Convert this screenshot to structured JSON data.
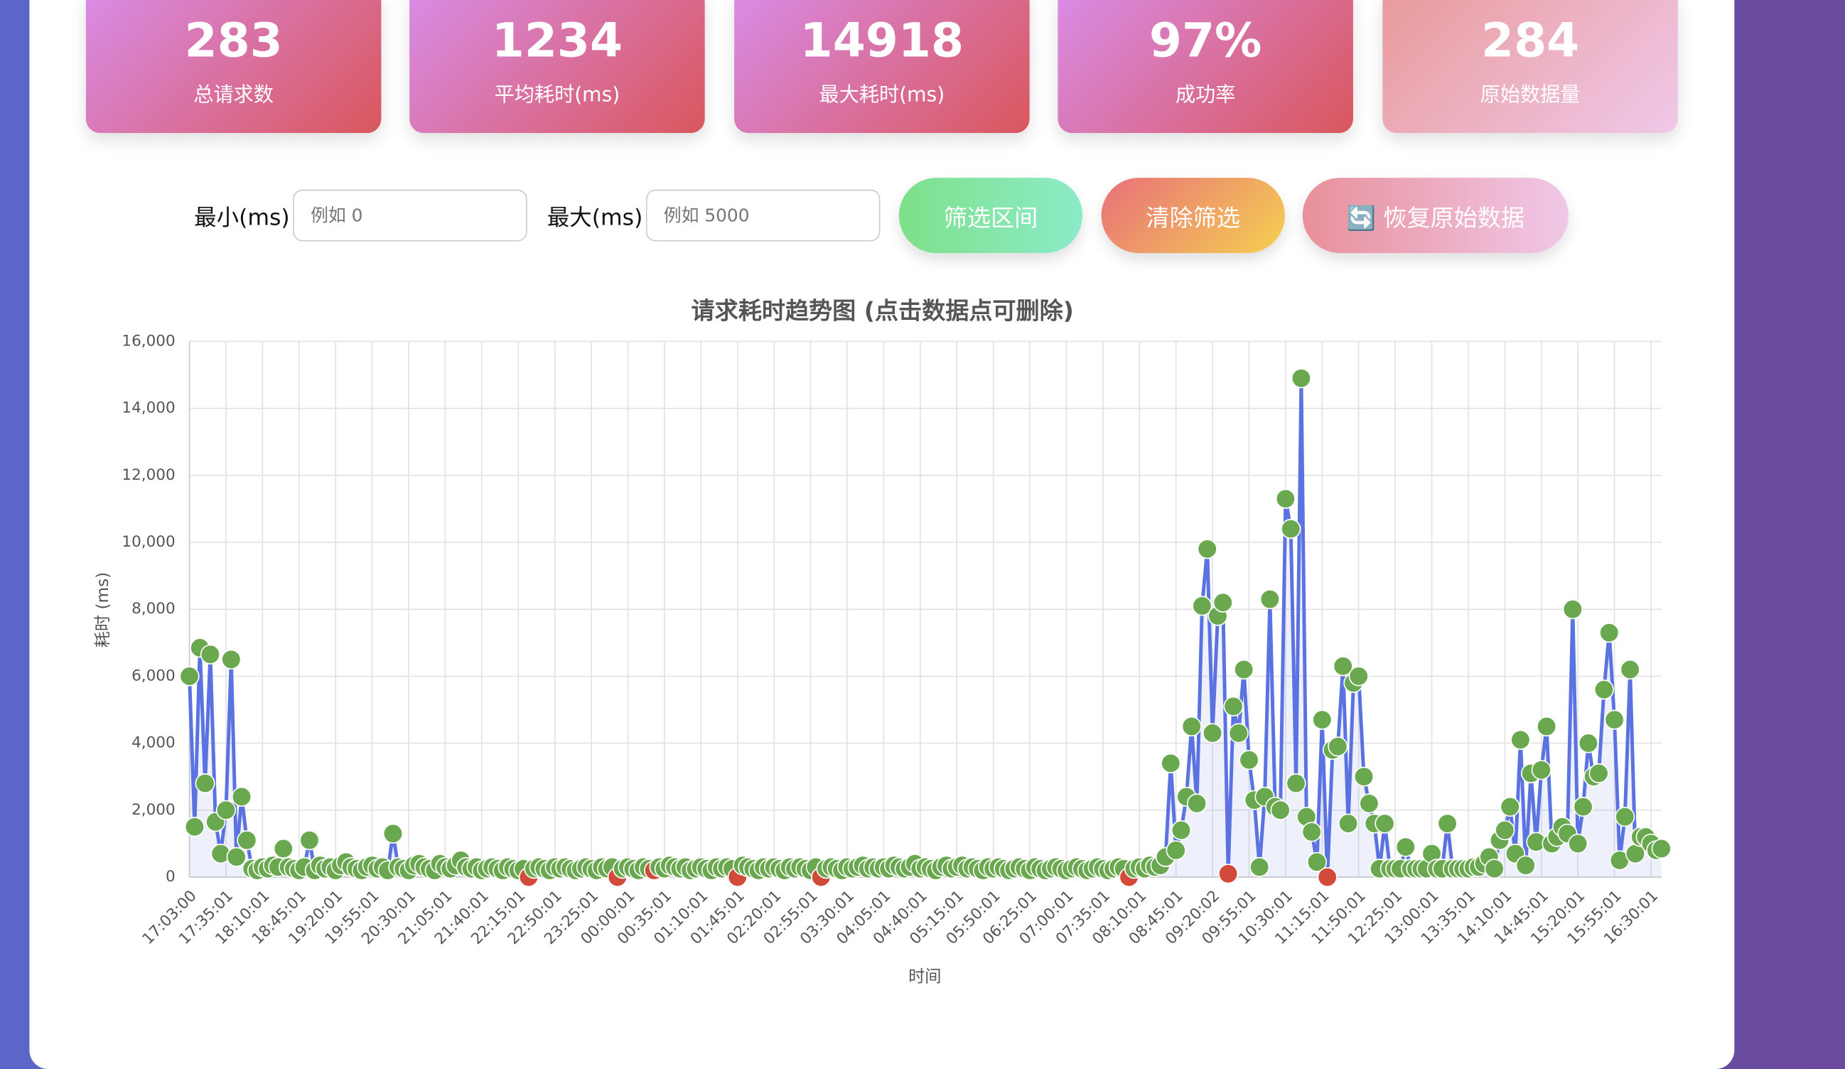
{
  "stats": [
    {
      "value": "283",
      "label": "总请求数"
    },
    {
      "value": "1234",
      "label": "平均耗时(ms)"
    },
    {
      "value": "14918",
      "label": "最大耗时(ms)"
    },
    {
      "value": "97%",
      "label": "成功率"
    },
    {
      "value": "284",
      "label": "原始数据量"
    }
  ],
  "filters": {
    "min_label": "最小(ms)",
    "min_placeholder": "例如 0",
    "max_label": "最大(ms)",
    "max_placeholder": "例如 5000"
  },
  "buttons": [
    "筛选区间",
    "清除筛选",
    "🔄 恢复原始数据"
  ],
  "chart_data": {
    "type": "line",
    "title": "请求耗时趋势图 (点击数据点可删除)",
    "x_label": "时间",
    "y_label": "耗时 (ms)",
    "categories": [
      "17:03:00",
      null,
      null,
      null,
      null,
      null,
      null,
      "17:35:01",
      null,
      null,
      null,
      null,
      null,
      null,
      "18:10:01",
      null,
      null,
      null,
      null,
      null,
      null,
      "18:45:01",
      null,
      null,
      null,
      null,
      null,
      null,
      "19:20:01",
      null,
      null,
      null,
      null,
      null,
      null,
      "19:55:01",
      null,
      null,
      null,
      null,
      null,
      null,
      "20:30:01",
      null,
      null,
      null,
      null,
      null,
      null,
      "21:05:01",
      null,
      null,
      null,
      null,
      null,
      null,
      "21:40:01",
      null,
      null,
      null,
      null,
      null,
      null,
      "22:15:01",
      null,
      null,
      null,
      null,
      null,
      null,
      "22:50:01",
      null,
      null,
      null,
      null,
      null,
      null,
      "23:25:01",
      null,
      null,
      null,
      null,
      null,
      null,
      "00:00:01",
      null,
      null,
      null,
      null,
      null,
      null,
      "00:35:01",
      null,
      null,
      null,
      null,
      null,
      null,
      "01:10:01",
      null,
      null,
      null,
      null,
      null,
      null,
      "01:45:01",
      null,
      null,
      null,
      null,
      null,
      null,
      "02:20:01",
      null,
      null,
      null,
      null,
      null,
      null,
      "02:55:01",
      null,
      null,
      null,
      null,
      null,
      null,
      "03:30:01",
      null,
      null,
      null,
      null,
      null,
      null,
      "04:05:01",
      null,
      null,
      null,
      null,
      null,
      null,
      "04:40:01",
      null,
      null,
      null,
      null,
      null,
      null,
      "05:15:01",
      null,
      null,
      null,
      null,
      null,
      null,
      "05:50:01",
      null,
      null,
      null,
      null,
      null,
      null,
      "06:25:01",
      null,
      null,
      null,
      null,
      null,
      null,
      "07:00:01",
      null,
      null,
      null,
      null,
      null,
      null,
      "07:35:01",
      null,
      null,
      null,
      null,
      null,
      null,
      "08:10:01",
      null,
      null,
      null,
      null,
      null,
      null,
      "08:45:01",
      null,
      null,
      null,
      null,
      null,
      null,
      "09:20:02",
      null,
      null,
      null,
      null,
      null,
      null,
      "09:55:01",
      null,
      null,
      null,
      null,
      null,
      null,
      "10:30:01",
      null,
      null,
      null,
      null,
      null,
      null,
      "11:15:01",
      null,
      null,
      null,
      null,
      null,
      null,
      "11:50:01",
      null,
      null,
      null,
      null,
      null,
      null,
      "12:25:01",
      null,
      null,
      null,
      null,
      null,
      null,
      "13:00:01",
      null,
      null,
      null,
      null,
      null,
      null,
      "13:35:01",
      null,
      null,
      null,
      null,
      null,
      null,
      "14:10:01",
      null,
      null,
      null,
      null,
      null,
      null,
      "14:45:01",
      null,
      null,
      null,
      null,
      null,
      null,
      "15:20:01",
      null,
      null,
      null,
      null,
      null,
      null,
      "15:55:01",
      null,
      null,
      null,
      null,
      null,
      null,
      "16:30:01",
      null,
      null
    ],
    "series": [
      {
        "color": "#5b73e0",
        "values": [
          6000,
          1500,
          6850,
          2800,
          6650,
          1650,
          700,
          2000,
          6500,
          600,
          2400,
          1100,
          250,
          200,
          300,
          250,
          350,
          300,
          850,
          300,
          250,
          200,
          300,
          1100,
          200,
          350,
          250,
          300,
          200,
          350,
          450,
          300,
          250,
          200,
          300,
          350,
          250,
          300,
          200,
          1300,
          300,
          250,
          200,
          350,
          400,
          300,
          250,
          200,
          400,
          300,
          250,
          350,
          500,
          300,
          250,
          300,
          200,
          250,
          300,
          250,
          200,
          300,
          250,
          200,
          250,
          0,
          250,
          300,
          250,
          200,
          300,
          250,
          300,
          250,
          200,
          250,
          300,
          250,
          200,
          300,
          250,
          300,
          0,
          250,
          300,
          250,
          200,
          300,
          250,
          200,
          300,
          250,
          350,
          300,
          250,
          300,
          200,
          250,
          300,
          250,
          200,
          300,
          250,
          300,
          250,
          0,
          350,
          300,
          250,
          200,
          300,
          250,
          300,
          250,
          200,
          300,
          250,
          300,
          250,
          200,
          300,
          0,
          250,
          300,
          250,
          200,
          300,
          250,
          300,
          350,
          250,
          300,
          250,
          300,
          250,
          350,
          300,
          250,
          300,
          400,
          250,
          300,
          250,
          200,
          300,
          350,
          250,
          300,
          350,
          250,
          300,
          250,
          200,
          300,
          250,
          300,
          250,
          200,
          250,
          300,
          250,
          200,
          300,
          250,
          200,
          250,
          300,
          250,
          200,
          250,
          300,
          250,
          200,
          250,
          300,
          250,
          200,
          250,
          300,
          250,
          0,
          250,
          300,
          250,
          350,
          300,
          350,
          600,
          3400,
          800,
          1400,
          2400,
          4500,
          2200,
          8100,
          9800,
          4300,
          7800,
          8200,
          100,
          5100,
          4300,
          6200,
          3500,
          2300,
          300,
          2400,
          8300,
          2100,
          2000,
          11300,
          10400,
          2800,
          14900,
          1800,
          1350,
          450,
          4700,
          0,
          3800,
          3900,
          6300,
          1600,
          5800,
          6000,
          3000,
          2200,
          1600,
          250,
          1600,
          250,
          250,
          250,
          900,
          250,
          250,
          250,
          250,
          700,
          250,
          250,
          1600,
          250,
          250,
          250,
          250,
          300,
          300,
          400,
          600,
          250,
          1100,
          1400,
          2100,
          700,
          4100,
          350,
          3100,
          1050,
          3200,
          4500,
          1000,
          1200,
          1500,
          1300,
          8000,
          1000,
          2100,
          4000,
          3000,
          3100,
          5600,
          7300,
          4700,
          500,
          1800,
          6200,
          700,
          1200,
          1200,
          1000,
          800,
          850
        ]
      }
    ],
    "point_color": "#6aa84f",
    "error_color": "#d24a3a",
    "error_points": [
      65,
      82,
      89,
      105,
      121,
      180,
      199,
      218
    ],
    "ylim": [
      0,
      16000
    ],
    "yticks": [
      0,
      {
        "value": 2000,
        "label": "2,000"
      },
      {
        "value": 4000,
        "label": "4,000"
      },
      {
        "value": 6000,
        "label": "6,000"
      },
      {
        "value": 8000,
        "label": "8,000"
      },
      {
        "value": 10000,
        "label": "10,000"
      },
      {
        "value": 12000,
        "label": "12,000"
      },
      {
        "value": 14000,
        "label": "14,000"
      },
      {
        "value": 16000,
        "label": "16,000"
      }
    ],
    "grid": true
  }
}
